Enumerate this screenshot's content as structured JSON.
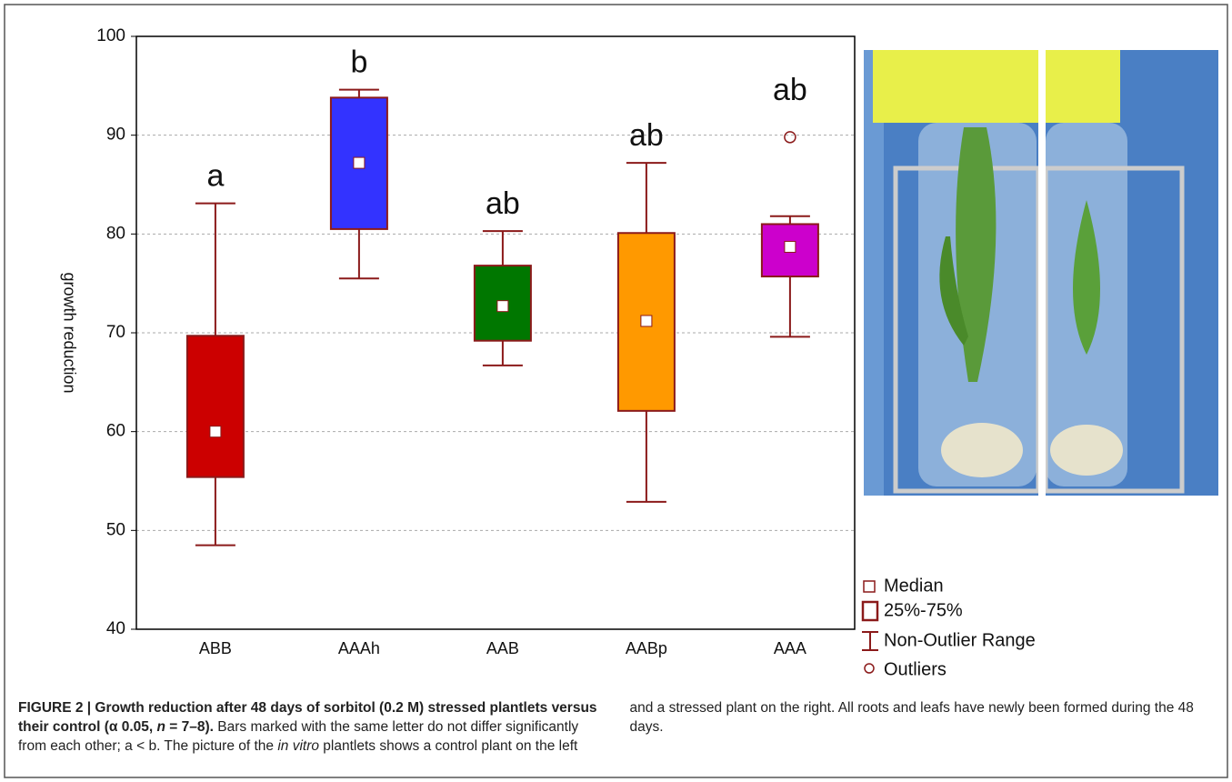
{
  "chart_data": {
    "type": "box",
    "ylabel": "growth reduction",
    "categories": [
      "ABB",
      "AAAh",
      "AAB",
      "AABp",
      "AAA"
    ],
    "boxes": [
      {
        "min": 48.5,
        "q1": 55.4,
        "median": 60,
        "q3": 69.7,
        "max": 83.1,
        "color": "#cc0000",
        "letter": "a",
        "outliers": []
      },
      {
        "min": 75.5,
        "q1": 80.5,
        "median": 87.2,
        "q3": 93.8,
        "max": 94.6,
        "color": "#3333ff",
        "letter": "b",
        "outliers": []
      },
      {
        "min": 66.7,
        "q1": 69.2,
        "median": 72.7,
        "q3": 76.8,
        "max": 80.3,
        "color": "#007700",
        "letter": "ab",
        "outliers": []
      },
      {
        "min": 52.9,
        "q1": 62.1,
        "median": 71.2,
        "q3": 80.1,
        "max": 87.2,
        "color": "#ff9900",
        "letter": "ab",
        "outliers": []
      },
      {
        "min": 69.6,
        "q1": 75.7,
        "median": 78.7,
        "q3": 81,
        "max": 81.8,
        "color": "#cc00cc",
        "letter": "ab",
        "outliers": [
          89.8
        ]
      }
    ],
    "ylim": [
      40,
      100
    ],
    "yticks": [
      40,
      50,
      60,
      70,
      80,
      90,
      100
    ],
    "grid": true,
    "legend": [
      "Median",
      "25%-75%",
      "Non-Outlier Range",
      "Outliers"
    ]
  },
  "caption": {
    "bold": "FIGURE 2 | Growth reduction after 48 days of sorbitol (0.2 M) stressed plantlets versus their control (α 0.05, ",
    "bold_italic": "n",
    "bold_end": " = 7–8).",
    "text": " Bars marked with the same letter do not differ significantly from each other; a < b. The picture of the ",
    "italic": "in vitro",
    "text_end": " plantlets shows a control plant on the left and a stressed plant on the right. All roots and leafs have newly been formed during the 48 days."
  }
}
